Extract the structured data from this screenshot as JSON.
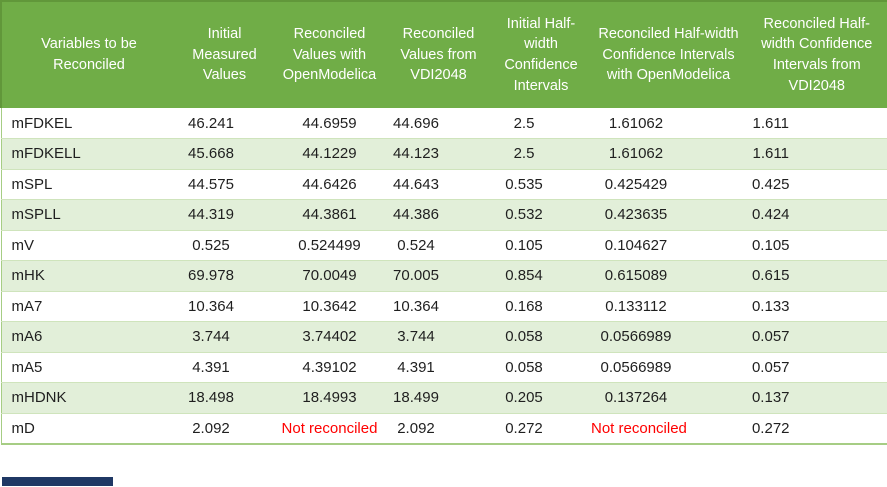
{
  "colors": {
    "header_bg": "#70ad47",
    "header_text": "#ffffff",
    "band_bg": "#e2efd9",
    "grid_line": "#cfe4bc",
    "outer_border": "#a6cd84",
    "body_text": "#1f1f1f",
    "not_reconciled_color": "#ff0000",
    "bottom_bar": "#1f3864"
  },
  "table": {
    "columns": [
      "Variables to be Reconciled",
      "Initial Measured Values",
      "Reconciled Values with OpenModelica",
      "Reconciled Values from VDI2048",
      "Initial Half-width Confidence Intervals",
      "Reconciled Half-width Confidence Intervals with OpenModelica",
      "Reconciled Half-width Confidence Intervals from VDI2048"
    ],
    "not_reconciled_text": "Not reconciled",
    "rows": [
      {
        "variable": "mFDKEL",
        "values": [
          "46.241",
          "44.6959",
          "44.696",
          "2.5",
          "1.61062",
          "1.611"
        ]
      },
      {
        "variable": "mFDKELL",
        "values": [
          "45.668",
          "44.1229",
          "44.123",
          "2.5",
          "1.61062",
          "1.611"
        ]
      },
      {
        "variable": "mSPL",
        "values": [
          "44.575",
          "44.6426",
          "44.643",
          "0.535",
          "0.425429",
          "0.425"
        ]
      },
      {
        "variable": "mSPLL",
        "values": [
          "44.319",
          "44.3861",
          "44.386",
          "0.532",
          "0.423635",
          "0.424"
        ]
      },
      {
        "variable": "mV",
        "values": [
          "0.525",
          "0.524499",
          "0.524",
          "0.105",
          "0.104627",
          "0.105"
        ]
      },
      {
        "variable": "mHK",
        "values": [
          "69.978",
          "70.0049",
          "70.005",
          "0.854",
          "0.615089",
          "0.615"
        ]
      },
      {
        "variable": "mA7",
        "values": [
          "10.364",
          "10.3642",
          "10.364",
          "0.168",
          "0.133112",
          "0.133"
        ]
      },
      {
        "variable": "mA6",
        "values": [
          "3.744",
          "3.74402",
          "3.744",
          "0.058",
          "0.0566989",
          "0.057"
        ]
      },
      {
        "variable": "mA5",
        "values": [
          "4.391",
          "4.39102",
          "4.391",
          "0.058",
          "0.0566989",
          "0.057"
        ]
      },
      {
        "variable": "mHDNK",
        "values": [
          "18.498",
          "18.4993",
          "18.499",
          "0.205",
          "0.137264",
          "0.137"
        ]
      },
      {
        "variable": "mD",
        "values": [
          "2.092",
          "Not reconciled",
          "2.092",
          "0.272",
          "Not reconciled",
          "0.272"
        ]
      }
    ]
  }
}
